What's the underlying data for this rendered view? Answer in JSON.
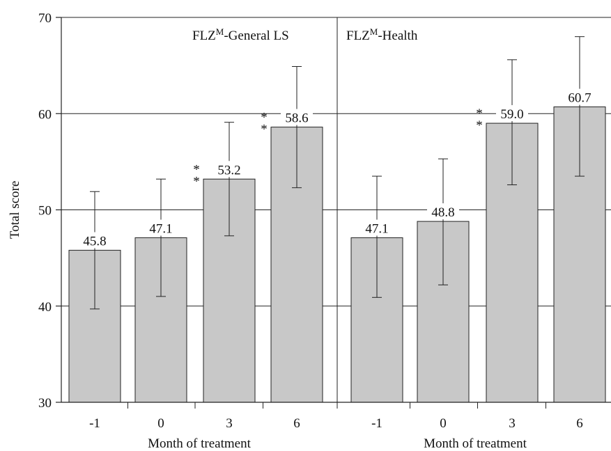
{
  "chart_data": {
    "type": "bar",
    "ylabel": "Total score",
    "ylim": [
      30,
      70
    ],
    "yticks": [
      "30",
      "40",
      "50",
      "60",
      "70"
    ],
    "grid": true,
    "error_bars": true,
    "colors": {
      "bar": "#c8c8c8",
      "bar_stroke": "#222222"
    },
    "panels": [
      {
        "title": "FLZ",
        "title_sup": "M",
        "title_suffix": "-General LS",
        "xlabel": "Month of treatment",
        "categories": [
          "-1",
          "0",
          "3",
          "6"
        ],
        "values": [
          45.8,
          47.1,
          53.2,
          58.6
        ],
        "value_labels": [
          "45.8",
          "47.1",
          "53.2",
          "58.6"
        ],
        "err_low": [
          39.7,
          41.0,
          47.3,
          52.3
        ],
        "err_high": [
          51.9,
          53.2,
          59.1,
          64.9
        ],
        "markers": [
          "",
          "",
          "**",
          "**"
        ]
      },
      {
        "title": "FLZ",
        "title_sup": "M",
        "title_suffix": "-Health",
        "xlabel": "Month of treatment",
        "categories": [
          "-1",
          "0",
          "3",
          "6"
        ],
        "values": [
          47.1,
          48.8,
          59.0,
          60.7
        ],
        "value_labels": [
          "47.1",
          "48.8",
          "59.0",
          "60.7"
        ],
        "err_low": [
          40.9,
          42.2,
          52.6,
          53.5
        ],
        "err_high": [
          53.5,
          55.3,
          65.6,
          68.0
        ],
        "markers": [
          "",
          "",
          "**",
          ""
        ]
      }
    ]
  }
}
